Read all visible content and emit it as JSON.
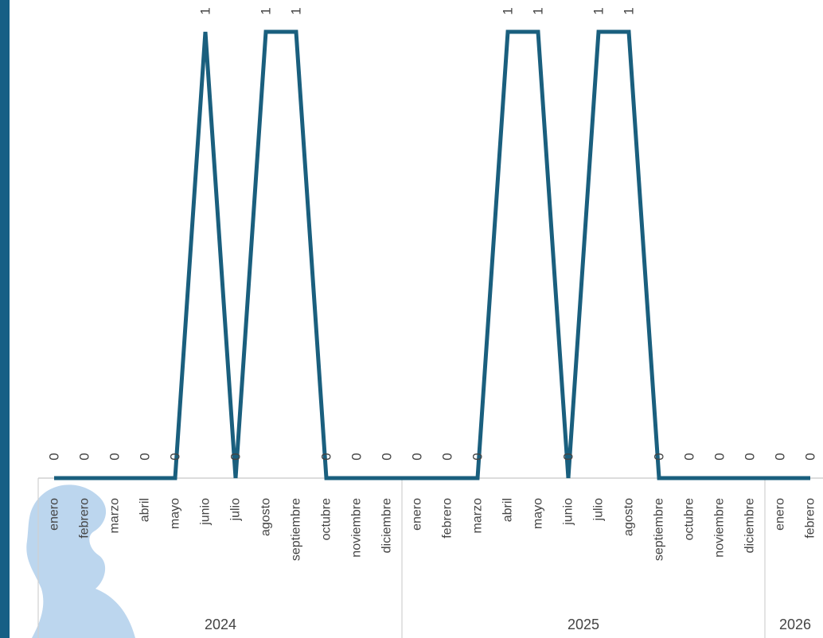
{
  "colors": {
    "left_bar": "#165f85",
    "line": "#1a5f7e",
    "watermark": "#bcd6ee",
    "axis": "#d0d0d0",
    "text": "#444444"
  },
  "watermark": {
    "icon": "profile-head-silhouette-icon"
  },
  "chart_data": {
    "type": "line",
    "title": "",
    "xlabel": "",
    "ylabel": "",
    "grid": false,
    "legend": "none",
    "ylim": [
      0,
      1
    ],
    "categories": [
      "enero",
      "febrero",
      "marzo",
      "abril",
      "mayo",
      "junio",
      "julio",
      "agosto",
      "septiembre",
      "octubre",
      "noviembre",
      "diciembre",
      "enero",
      "febrero",
      "marzo",
      "abril",
      "mayo",
      "junio",
      "julio",
      "agosto",
      "septiembre",
      "octubre",
      "noviembre",
      "diciembre",
      "enero",
      "febrero"
    ],
    "years": [
      {
        "label": "2024",
        "count": 12
      },
      {
        "label": "2025",
        "count": 12
      },
      {
        "label": "2026",
        "count": 2
      }
    ],
    "series": [
      {
        "values": [
          0,
          0,
          0,
          0,
          0,
          1,
          0,
          1,
          1,
          0,
          0,
          0,
          0,
          0,
          0,
          1,
          1,
          0,
          1,
          1,
          0,
          0,
          0,
          0,
          0,
          0
        ],
        "data_labels": [
          "0",
          "0",
          "0",
          "0",
          "0",
          "1",
          "0",
          "1",
          "1",
          "0",
          "0",
          "0",
          "0",
          "0",
          "0",
          "1",
          "1",
          "0",
          "1",
          "1",
          "0",
          "0",
          "0",
          "0",
          "0",
          "0"
        ]
      }
    ]
  }
}
